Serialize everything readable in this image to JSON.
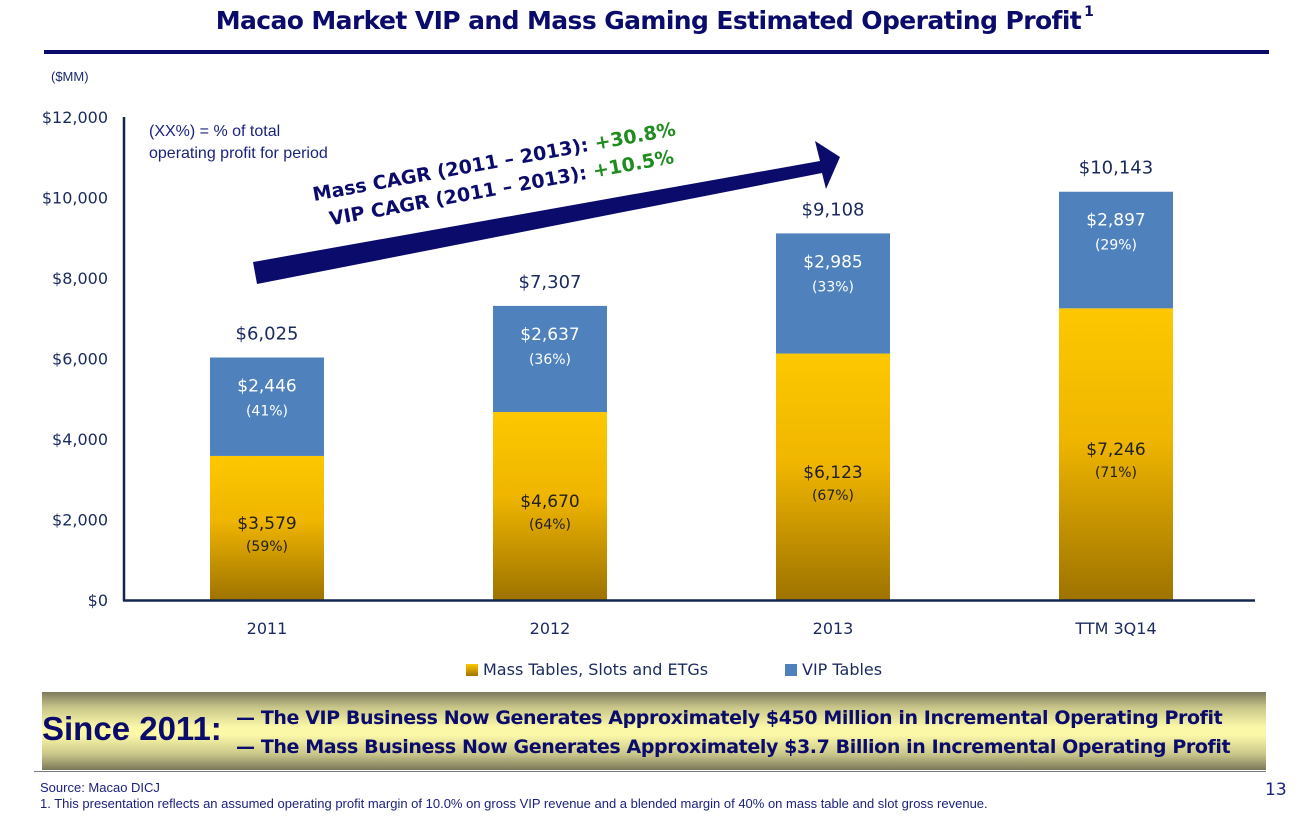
{
  "slide": {
    "title": "Macao Market VIP and Mass Gaming Estimated Operating Profit",
    "title_footnote_marker": "1",
    "units_label": "($MM)",
    "note_line1": "(XX%) = % of total",
    "note_line2": "operating profit for period",
    "page_number": "13"
  },
  "cagr": {
    "mass_label": "Mass CAGR (2011 – 2013): ",
    "mass_value": "+30.8%",
    "vip_label": "VIP CAGR (2011 – 2013): ",
    "vip_value": "+10.5%"
  },
  "banner": {
    "lead": "Since 2011:",
    "line1": "— The VIP Business Now Generates Approximately $450 Million in Incremental Operating Profit",
    "line2": "— The Mass Business Now Generates Approximately $3.7 Billion in Incremental Operating Profit"
  },
  "footer": {
    "source": "Source: Macao DICJ",
    "footnote": "1. This presentation reflects an assumed operating profit margin of 10.0% on gross VIP revenue and a blended margin of 40% on mass table and slot gross revenue."
  },
  "colors": {
    "navy": "#0b0b6b",
    "vip_blue": "#4f81bd",
    "mass_gold_top": "#fdc800",
    "mass_gold_bottom": "#a07400",
    "cagr_green": "#1e8c1e"
  },
  "chart_data": {
    "type": "bar",
    "stacked": true,
    "title": "Macao Market VIP and Mass Gaming Estimated Operating Profit",
    "xlabel": "",
    "ylabel": "($MM)",
    "ylim": [
      0,
      12000
    ],
    "yticks": [
      0,
      2000,
      4000,
      6000,
      8000,
      10000,
      12000
    ],
    "ytick_labels": [
      "$0",
      "$2,000",
      "$4,000",
      "$6,000",
      "$8,000",
      "$10,000",
      "$12,000"
    ],
    "grid": false,
    "legend_position": "bottom",
    "categories": [
      "2011",
      "2012",
      "2013",
      "TTM 3Q14"
    ],
    "series": [
      {
        "name": "Mass Tables, Slots and ETGs",
        "values": [
          3579,
          4670,
          6123,
          7246
        ],
        "labels": [
          "$3,579",
          "$4,670",
          "$6,123",
          "$7,246"
        ],
        "pct_labels": [
          "(59%)",
          "(64%)",
          "(67%)",
          "(71%)"
        ]
      },
      {
        "name": "VIP Tables",
        "values": [
          2446,
          2637,
          2985,
          2897
        ],
        "labels": [
          "$2,446",
          "$2,637",
          "$2,985",
          "$2,897"
        ],
        "pct_labels": [
          "(41%)",
          "(36%)",
          "(33%)",
          "(29%)"
        ]
      }
    ],
    "totals": [
      6025,
      7307,
      9108,
      10143
    ],
    "total_labels": [
      "$6,025",
      "$7,307",
      "$9,108",
      "$10,143"
    ],
    "annotations": [
      "(XX%) = % of total operating profit for period",
      "Mass CAGR (2011 – 2013): +30.8%",
      "VIP CAGR (2011 – 2013): +10.5%"
    ]
  }
}
